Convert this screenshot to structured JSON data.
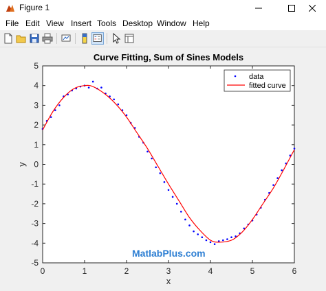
{
  "window": {
    "title": "Figure 1"
  },
  "menu": [
    "File",
    "Edit",
    "View",
    "Insert",
    "Tools",
    "Desktop",
    "Window",
    "Help"
  ],
  "toolbar": {
    "buttons": [
      "new-figure-icon",
      "open-file-icon",
      "save-icon",
      "print-icon",
      "link-plot-icon",
      "insert-colorbar-icon",
      "insert-legend-icon",
      "edit-plot-icon",
      "property-inspector-icon"
    ]
  },
  "watermark": "MatlabPlus.com",
  "colors": {
    "data": "#0000ff",
    "fit": "#ff0000",
    "accent": "#2e7fd3"
  },
  "chart_data": {
    "type": "scatter",
    "title": "Curve Fitting, Sum of Sines Models",
    "xlabel": "x",
    "ylabel": "y",
    "xlim": [
      0,
      6
    ],
    "ylim": [
      -5,
      5
    ],
    "xticks": [
      "0",
      "1",
      "2",
      "3",
      "4",
      "5",
      "6"
    ],
    "yticks": [
      "-5",
      "-4",
      "-3",
      "-2",
      "-1",
      "0",
      "1",
      "2",
      "3",
      "4",
      "5"
    ],
    "grid": false,
    "legend": {
      "location": "top-right",
      "entries": [
        "data",
        "fitted curve"
      ]
    },
    "series": [
      {
        "name": "data",
        "style": "points",
        "x": [
          0,
          0.1,
          0.2,
          0.3,
          0.4,
          0.5,
          0.6,
          0.7,
          0.8,
          0.9,
          1.0,
          1.1,
          1.2,
          1.3,
          1.4,
          1.5,
          1.6,
          1.7,
          1.8,
          1.9,
          2.0,
          2.1,
          2.2,
          2.3,
          2.4,
          2.5,
          2.6,
          2.7,
          2.8,
          2.9,
          3.0,
          3.1,
          3.2,
          3.3,
          3.4,
          3.5,
          3.6,
          3.7,
          3.8,
          3.9,
          4.0,
          4.1,
          4.2,
          4.3,
          4.4,
          4.5,
          4.6,
          4.7,
          4.8,
          4.9,
          5.0,
          5.1,
          5.2,
          5.3,
          5.4,
          5.5,
          5.6,
          5.7,
          5.8,
          5.9,
          6.0
        ],
        "y": [
          1.8,
          2.2,
          2.4,
          2.75,
          3.0,
          3.45,
          3.55,
          3.75,
          3.85,
          3.95,
          4.0,
          3.9,
          4.2,
          3.85,
          3.9,
          3.6,
          3.45,
          3.3,
          3.05,
          2.75,
          2.5,
          2.1,
          1.85,
          1.4,
          1.1,
          0.65,
          0.3,
          -0.15,
          -0.45,
          -0.9,
          -1.3,
          -1.65,
          -2.0,
          -2.4,
          -2.8,
          -3.1,
          -3.4,
          -3.55,
          -3.7,
          -3.85,
          -3.95,
          -4.05,
          -3.9,
          -3.85,
          -3.8,
          -3.7,
          -3.65,
          -3.5,
          -3.25,
          -3.05,
          -2.85,
          -2.55,
          -2.2,
          -1.8,
          -1.45,
          -1.05,
          -0.7,
          -0.3,
          0.05,
          0.45,
          0.8
        ]
      },
      {
        "name": "fitted curve",
        "style": "line",
        "x": [
          0,
          0.25,
          0.5,
          0.75,
          1.0,
          1.2,
          1.5,
          1.75,
          2.0,
          2.25,
          2.5,
          2.75,
          3.0,
          3.25,
          3.5,
          3.75,
          4.0,
          4.2,
          4.5,
          4.75,
          5.0,
          5.25,
          5.5,
          5.75,
          6.0
        ],
        "y": [
          1.75,
          2.7,
          3.4,
          3.85,
          4.0,
          3.95,
          3.55,
          3.05,
          2.4,
          1.6,
          0.8,
          -0.1,
          -1.0,
          -1.85,
          -2.7,
          -3.35,
          -3.85,
          -3.95,
          -3.85,
          -3.45,
          -2.8,
          -2.0,
          -1.2,
          -0.25,
          0.75
        ]
      }
    ]
  }
}
